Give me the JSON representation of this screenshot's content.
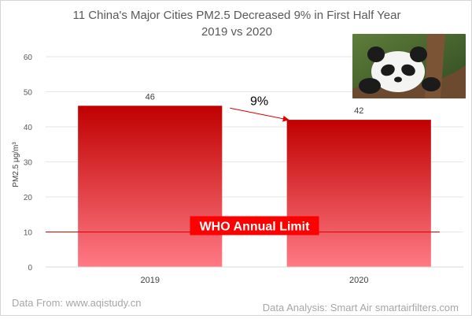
{
  "chart_data": {
    "type": "bar",
    "title": "11 China's Major Cities PM2.5 Decreased 9% in First Half Year",
    "subtitle": "2019 vs 2020",
    "categories": [
      "2019",
      "2020"
    ],
    "values": [
      46,
      42
    ],
    "data_labels": [
      "46",
      "42"
    ],
    "ylabel": "PM2.5  μg/m³",
    "ylim": [
      0,
      60
    ],
    "yticks": [
      "0",
      "10",
      "20",
      "30",
      "40",
      "50",
      "60"
    ],
    "grid": true,
    "reference_line": {
      "value": 10,
      "label": "WHO Annual Limit",
      "color": "#e00000"
    },
    "change_annotation": "9%",
    "bar_color_top": "#c00000",
    "bar_color_bottom": "#ff7a85"
  },
  "footer": {
    "source": "Data From: www.aqistudy.cn",
    "analysis": "Data Analysis: Smart Air smartairfilters.com"
  }
}
